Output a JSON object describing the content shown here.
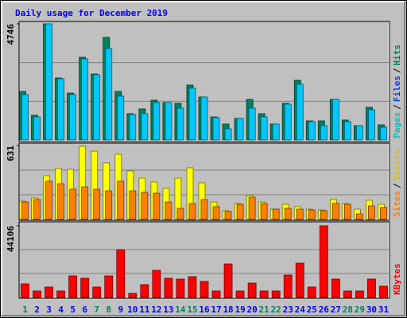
{
  "title": "Daily usage for December 2019",
  "x_axis": {
    "categories": [
      "1",
      "2",
      "3",
      "4",
      "5",
      "6",
      "7",
      "8",
      "9",
      "10",
      "11",
      "12",
      "13",
      "14",
      "15",
      "16",
      "17",
      "18",
      "19",
      "20",
      "21",
      "22",
      "23",
      "24",
      "25",
      "26",
      "27",
      "28",
      "29",
      "30",
      "31"
    ],
    "colors": [
      "#00805c",
      "#0000ff",
      "#0000ff",
      "#0000ff",
      "#0000ff",
      "#0000ff",
      "#00805c",
      "#00805c",
      "#0000ff",
      "#0000ff",
      "#0000ff",
      "#0000ff",
      "#0000ff",
      "#00805c",
      "#00805c",
      "#0000ff",
      "#0000ff",
      "#0000ff",
      "#0000ff",
      "#0000ff",
      "#00805c",
      "#00805c",
      "#0000ff",
      "#0000ff",
      "#0000ff",
      "#0000ff",
      "#0000ff",
      "#00805c",
      "#00805c",
      "#0000ff",
      "#0000ff"
    ]
  },
  "chart_data": [
    {
      "type": "bar",
      "ylim": [
        0,
        4746
      ],
      "yticks": [
        4746
      ],
      "legend_separator": "/",
      "legend": [
        {
          "name": "Pages",
          "color": "#00c0c0"
        },
        {
          "name": "Files",
          "color": "#0040ff"
        },
        {
          "name": "Hits",
          "color": "#00805c"
        }
      ],
      "series": [
        {
          "name": "Hits",
          "color": "#00805c",
          "values": [
            1983,
            1008,
            4746,
            2535,
            1918,
            3380,
            2698,
            4193,
            1983,
            1073,
            1268,
            1625,
            1528,
            1495,
            2243,
            1755,
            943,
            650,
            878,
            1658,
            1073,
            650,
            1495,
            2438,
            780,
            780,
            1658,
            813,
            585,
            1333,
            618
          ]
        },
        {
          "name": "Files",
          "color": "#00c8ff",
          "values": [
            1853,
            943,
            4746,
            2503,
            1853,
            3315,
            2665,
            3738,
            1788,
            1040,
            1073,
            1528,
            1528,
            1300,
            2113,
            1755,
            910,
            455,
            878,
            1300,
            943,
            650,
            1463,
            2275,
            748,
            585,
            1658,
            748,
            585,
            1235,
            520
          ]
        }
      ]
    },
    {
      "type": "bar",
      "ylim": [
        0,
        631
      ],
      "yticks": [
        631
      ],
      "legend_separator": "/",
      "legend": [
        {
          "name": "Sites",
          "color": "#ff8000"
        },
        {
          "name": "Visits",
          "color": "#e0c000"
        }
      ],
      "series": [
        {
          "name": "Visits",
          "color": "#ffff00",
          "values": [
            156,
            183,
            373,
            434,
            427,
            624,
            583,
            482,
            556,
            414,
            353,
            319,
            265,
            353,
            441,
            312,
            149,
            75,
            136,
            204,
            149,
            88,
            129,
            109,
            88,
            81,
            170,
            136,
            88,
            163,
            129
          ]
        },
        {
          "name": "Sites",
          "color": "#ff8000",
          "values": [
            149,
            170,
            326,
            305,
            258,
            278,
            258,
            244,
            326,
            244,
            231,
            224,
            149,
            95,
            136,
            170,
            109,
            68,
            129,
            190,
            136,
            88,
            95,
            88,
            81,
            75,
            136,
            129,
            47,
            115,
            102
          ]
        }
      ]
    },
    {
      "type": "bar",
      "ylim": [
        0,
        44106
      ],
      "yticks": [
        44106
      ],
      "legend_separator": "/",
      "legend": [
        {
          "name": "KBytes",
          "color": "#ff0000"
        }
      ],
      "series": [
        {
          "name": "KBytes",
          "color": "#ff0000",
          "values": [
            8330,
            3920,
            6370,
            3920,
            13230,
            11760,
            6370,
            13230,
            29400,
            2450,
            7840,
            16660,
            11760,
            11270,
            12740,
            9800,
            3920,
            20580,
            3920,
            8820,
            3920,
            3920,
            13720,
            21070,
            6370,
            44106,
            11270,
            3920,
            3920,
            11270,
            6860
          ]
        }
      ]
    }
  ]
}
